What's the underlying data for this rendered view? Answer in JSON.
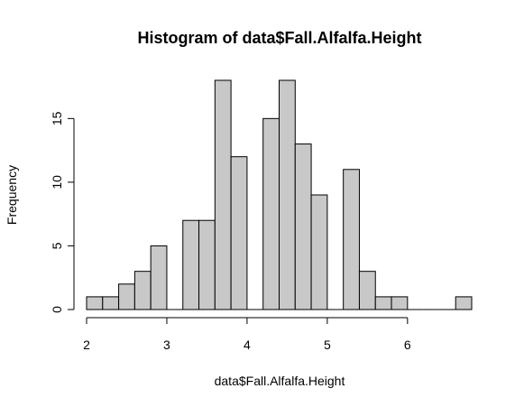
{
  "chart_data": {
    "type": "bar",
    "title": "Histogram of data$Fall.Alfalfa.Height",
    "xlabel": "data$Fall.Alfalfa.Height",
    "ylabel": "Frequency",
    "bin_width": 0.2,
    "bins": [
      {
        "start": 2.0,
        "end": 2.2,
        "count": 1
      },
      {
        "start": 2.2,
        "end": 2.4,
        "count": 1
      },
      {
        "start": 2.4,
        "end": 2.6,
        "count": 2
      },
      {
        "start": 2.6,
        "end": 2.8,
        "count": 3
      },
      {
        "start": 2.8,
        "end": 3.0,
        "count": 5
      },
      {
        "start": 3.0,
        "end": 3.2,
        "count": 0
      },
      {
        "start": 3.2,
        "end": 3.4,
        "count": 7
      },
      {
        "start": 3.4,
        "end": 3.6,
        "count": 7
      },
      {
        "start": 3.6,
        "end": 3.8,
        "count": 18
      },
      {
        "start": 3.8,
        "end": 4.0,
        "count": 12
      },
      {
        "start": 4.0,
        "end": 4.2,
        "count": 0
      },
      {
        "start": 4.2,
        "end": 4.4,
        "count": 15
      },
      {
        "start": 4.4,
        "end": 4.6,
        "count": 18
      },
      {
        "start": 4.6,
        "end": 4.8,
        "count": 13
      },
      {
        "start": 4.8,
        "end": 5.0,
        "count": 9
      },
      {
        "start": 5.0,
        "end": 5.2,
        "count": 0
      },
      {
        "start": 5.2,
        "end": 5.4,
        "count": 11
      },
      {
        "start": 5.4,
        "end": 5.6,
        "count": 3
      },
      {
        "start": 5.6,
        "end": 5.8,
        "count": 1
      },
      {
        "start": 5.8,
        "end": 6.0,
        "count": 1
      },
      {
        "start": 6.0,
        "end": 6.2,
        "count": 0
      },
      {
        "start": 6.2,
        "end": 6.4,
        "count": 0
      },
      {
        "start": 6.4,
        "end": 6.6,
        "count": 0
      },
      {
        "start": 6.6,
        "end": 6.8,
        "count": 1
      }
    ],
    "xticks": [
      2,
      3,
      4,
      5,
      6
    ],
    "xtick_labels": [
      "2",
      "3",
      "4",
      "5",
      "6"
    ],
    "yticks": [
      0,
      5,
      10,
      15
    ],
    "ytick_labels": [
      "0",
      "5",
      "10",
      "15"
    ],
    "xlim": [
      2.0,
      6.8
    ],
    "ylim": [
      0,
      18
    ],
    "grid": false,
    "legend": "none",
    "bar_color": "#c8c8c8",
    "edge_color": "#000000"
  }
}
